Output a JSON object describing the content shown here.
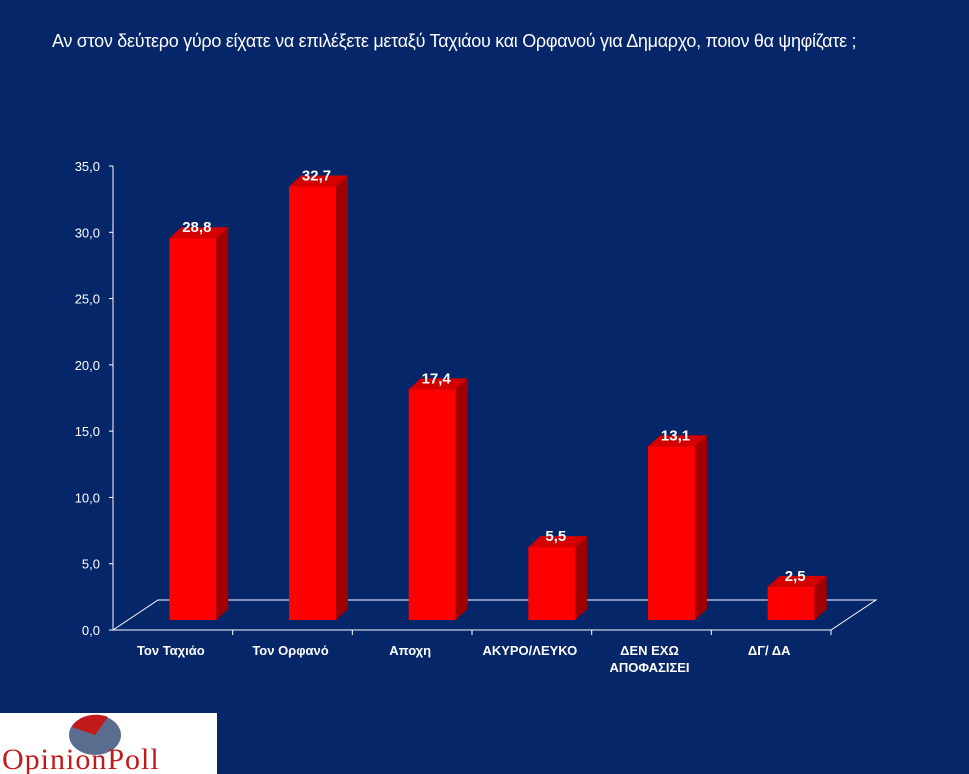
{
  "title": "Αν στον δεύτερο γύρο είχατε να επιλέξετε μεταξύ Ταχιάου και Ορφανού για Δημαρχο, ποιον θα ψηφίζατε ;",
  "logo": {
    "text": "OpinionPoll"
  },
  "colors": {
    "background": "#06266a",
    "bar_front": "#ff0000",
    "bar_side": "#a00000",
    "bar_top": "#d40000",
    "text": "#ffffff"
  },
  "chart_data": {
    "type": "bar",
    "categories": [
      [
        "Τον Ταχιάο"
      ],
      [
        "Τον Ορφανό"
      ],
      [
        "Αποχη"
      ],
      [
        "ΑΚΥΡΟ/ΛΕΥΚΟ"
      ],
      [
        "ΔΕΝ ΕΧΩ",
        "ΑΠΟΦΑΣΙΣΕΙ"
      ],
      [
        "ΔΓ/ ΔΑ"
      ]
    ],
    "values": [
      28.8,
      32.7,
      17.4,
      5.5,
      13.1,
      2.5
    ],
    "value_labels": [
      "28,8",
      "32,7",
      "17,4",
      "5,5",
      "13,1",
      "2,5"
    ],
    "y_ticks": [
      "0,0",
      "5,0",
      "10,0",
      "15,0",
      "20,0",
      "25,0",
      "30,0",
      "35,0"
    ],
    "ylim": [
      0,
      35
    ],
    "grid": false,
    "legend": "none",
    "style": "3d"
  }
}
